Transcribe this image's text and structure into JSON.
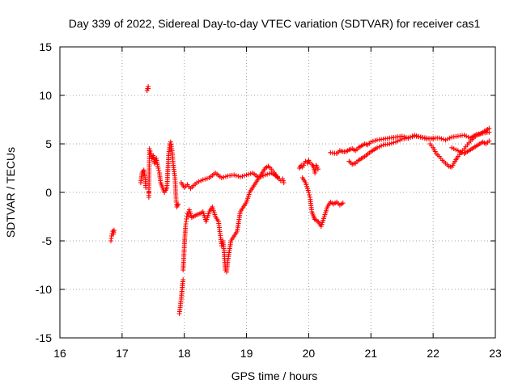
{
  "chart_data": {
    "type": "scatter",
    "title": "Day 339 of 2022, Sidereal Day-to-day VTEC variation (SDTVAR) for receiver cas1",
    "xlabel": "GPS time / hours",
    "ylabel": "SDTVAR / TECUs",
    "xlim": [
      16,
      23
    ],
    "ylim": [
      -15,
      15
    ],
    "x_ticks": [
      "16",
      "17",
      "18",
      "19",
      "20",
      "21",
      "22",
      "23"
    ],
    "y_ticks": [
      "-15",
      "-10",
      "-5",
      "0",
      "5",
      "10",
      "15"
    ],
    "grid": true,
    "marker": "+",
    "series": [
      {
        "name": "cas1",
        "color": "#ff0000",
        "x": [
          16.82,
          16.83,
          16.85,
          16.86,
          16.87,
          17.3,
          17.32,
          17.35,
          17.37,
          17.38,
          17.4,
          17.42,
          17.42,
          17.43,
          17.43,
          17.44,
          17.46,
          17.48,
          17.5,
          17.52,
          17.55,
          17.58,
          17.6,
          17.62,
          17.65,
          17.68,
          17.7,
          17.72,
          17.75,
          17.77,
          17.78,
          17.8,
          17.82,
          17.85,
          17.87,
          17.88,
          17.9,
          17.92,
          17.95,
          17.98,
          17.98,
          17.99,
          18.0,
          18.01,
          18.02,
          18.03,
          18.04,
          18.05,
          18.06,
          18.07,
          18.08,
          18.1,
          18.12,
          18.15,
          18.2,
          18.25,
          18.3,
          18.35,
          18.4,
          18.45,
          18.5,
          18.55,
          18.6,
          18.62,
          18.64,
          18.66,
          18.68,
          18.7,
          18.75,
          18.8,
          18.85,
          18.9,
          18.95,
          19.0,
          19.05,
          19.1,
          19.15,
          19.2,
          19.25,
          19.3,
          19.35,
          19.4,
          19.45,
          19.5,
          17.95,
          18.0,
          18.05,
          18.1,
          18.15,
          18.2,
          18.3,
          18.4,
          18.5,
          18.6,
          18.7,
          18.8,
          18.9,
          19.0,
          19.1,
          19.2,
          19.3,
          19.4,
          19.5,
          19.55,
          19.58,
          19.6,
          19.85,
          19.88,
          19.9,
          19.93,
          19.95,
          19.98,
          20.0,
          20.02,
          20.05,
          20.08,
          20.1,
          20.12,
          20.15,
          19.9,
          19.95,
          20.0,
          20.02,
          20.05,
          20.08,
          20.1,
          20.15,
          20.2,
          20.25,
          20.3,
          20.35,
          20.4,
          20.45,
          20.5,
          20.55,
          20.35,
          20.45,
          20.5,
          20.55,
          20.6,
          20.65,
          20.7,
          20.75,
          20.8,
          20.85,
          20.9,
          20.95,
          21.0,
          21.1,
          21.2,
          21.3,
          21.4,
          21.5,
          21.6,
          21.7,
          21.8,
          21.9,
          22.0,
          22.1,
          22.2,
          22.3,
          22.4,
          22.5,
          22.6,
          22.7,
          22.8,
          22.9,
          20.65,
          20.7,
          20.75,
          20.8,
          20.9,
          21.0,
          21.1,
          21.2,
          21.3,
          21.4,
          21.5,
          21.6,
          21.7,
          21.8,
          21.9,
          22.0,
          21.95,
          22.0,
          22.05,
          22.1,
          22.15,
          22.2,
          22.25,
          22.3,
          22.35,
          22.4,
          22.45,
          22.5,
          22.55,
          22.6,
          22.65,
          22.7,
          22.75,
          22.8,
          22.85,
          22.9,
          22.3,
          22.4,
          22.5,
          22.6,
          22.7,
          22.8,
          22.85,
          22.9
        ],
        "y": [
          -5.0,
          -4.5,
          -4.0,
          -4.3,
          -3.9,
          1.0,
          2.0,
          2.3,
          1.5,
          0.5,
          10.5,
          10.9,
          10.7,
          0.0,
          -0.5,
          4.5,
          4.0,
          3.5,
          3.8,
          3.0,
          3.5,
          2.5,
          2.0,
          1.0,
          0.5,
          0.0,
          0.2,
          0.5,
          4.0,
          5.0,
          5.2,
          4.5,
          3.0,
          1.5,
          -1.0,
          -1.5,
          -1.2,
          -12.5,
          -11.0,
          -9.0,
          -8.0,
          -7.0,
          -5.5,
          -4.5,
          -3.5,
          -3.0,
          -2.5,
          -2.2,
          -2.5,
          -2.0,
          -1.8,
          -2.2,
          -2.6,
          -2.5,
          -2.3,
          -2.2,
          -2.0,
          -3.0,
          -2.0,
          -1.5,
          -2.5,
          -3.0,
          -5.5,
          -5.0,
          -6.0,
          -8.0,
          -8.2,
          -7.0,
          -5.0,
          -4.5,
          -4.0,
          -2.0,
          -1.5,
          -1.0,
          0.0,
          0.5,
          1.0,
          1.5,
          2.0,
          2.5,
          2.7,
          2.4,
          2.0,
          1.5,
          1.0,
          0.5,
          0.8,
          0.4,
          0.7,
          1.0,
          1.3,
          1.5,
          2.0,
          1.5,
          1.7,
          1.8,
          1.6,
          1.8,
          2.0,
          1.5,
          1.8,
          2.0,
          1.6,
          1.2,
          1.4,
          1.0,
          2.5,
          2.8,
          2.6,
          3.0,
          3.2,
          3.0,
          3.3,
          3.1,
          2.9,
          2.6,
          2.0,
          2.8,
          2.4,
          1.5,
          1.0,
          0.0,
          -0.5,
          -2.0,
          -2.5,
          -2.8,
          -3.0,
          -3.5,
          -2.5,
          -1.5,
          -1.0,
          -1.2,
          -1.0,
          -1.3,
          -1.1,
          4.1,
          4.0,
          4.3,
          4.2,
          4.2,
          4.4,
          4.5,
          4.3,
          4.6,
          4.8,
          5.0,
          4.9,
          5.2,
          5.4,
          5.5,
          5.6,
          5.7,
          5.8,
          5.6,
          5.9,
          5.7,
          5.5,
          5.6,
          5.6,
          5.4,
          5.7,
          5.8,
          5.9,
          5.6,
          6.0,
          6.1,
          6.2,
          3.2,
          2.9,
          3.0,
          3.3,
          3.7,
          4.2,
          4.6,
          4.9,
          5.0,
          5.2,
          5.5,
          5.6,
          5.8,
          5.7,
          5.6,
          5.5,
          5.0,
          4.6,
          4.0,
          3.7,
          3.3,
          3.0,
          2.7,
          2.6,
          3.2,
          3.7,
          4.1,
          4.5,
          4.9,
          5.3,
          5.6,
          5.9,
          6.0,
          6.2,
          6.4,
          6.6,
          4.6,
          4.3,
          4.0,
          4.4,
          4.8,
          5.2,
          5.0,
          5.3
        ]
      }
    ]
  }
}
